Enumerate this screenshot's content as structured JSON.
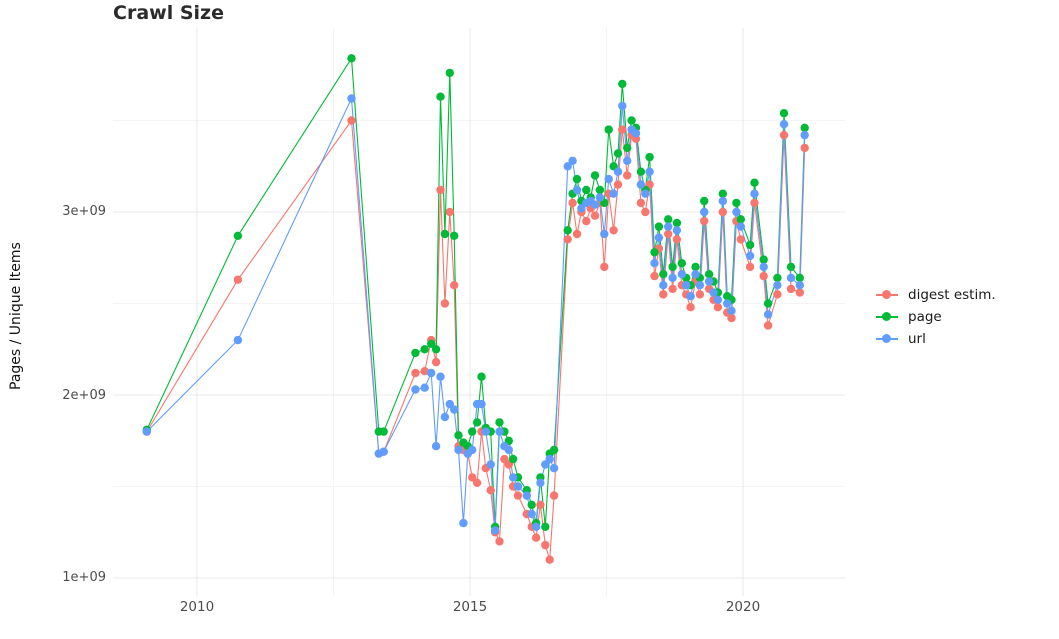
{
  "page": {
    "title": "Crawl Size"
  },
  "axes": {
    "y_label": "Pages / Unique Items",
    "y_ticks": [
      "1e+09",
      "2e+09",
      "3e+09"
    ],
    "x_ticks": [
      "2010",
      "2015",
      "2020"
    ]
  },
  "legend": {
    "items": [
      {
        "label": "digest estim.",
        "color": "#F8766D"
      },
      {
        "label": "page",
        "color": "#00BA38"
      },
      {
        "label": "url",
        "color": "#619CFF"
      }
    ]
  },
  "chart_data": {
    "type": "scatter",
    "title": "Crawl Size",
    "xlabel": "",
    "ylabel": "Pages / Unique Items",
    "y_unit": "billions of pages / unique items",
    "y_scale": 1000000000.0,
    "xlim": [
      2008.5,
      2021.9
    ],
    "ylim": [
      0.9,
      4.0
    ],
    "x_tick_values": [
      2010,
      2015,
      2020
    ],
    "y_tick_values": [
      1,
      2,
      3
    ],
    "y_tick_labels": [
      "1e+09",
      "2e+09",
      "3e+09"
    ],
    "grid": true,
    "legend_position": "right",
    "marker": "point-with-line",
    "x": [
      2009.08,
      2010.75,
      2012.83,
      2013.33,
      2013.42,
      2014.0,
      2014.17,
      2014.29,
      2014.38,
      2014.46,
      2014.54,
      2014.63,
      2014.71,
      2014.79,
      2014.88,
      2014.96,
      2015.04,
      2015.13,
      2015.21,
      2015.29,
      2015.38,
      2015.46,
      2015.54,
      2015.63,
      2015.71,
      2015.79,
      2015.88,
      2016.04,
      2016.13,
      2016.21,
      2016.29,
      2016.38,
      2016.46,
      2016.54,
      2016.79,
      2016.88,
      2016.96,
      2017.04,
      2017.13,
      2017.21,
      2017.29,
      2017.38,
      2017.46,
      2017.54,
      2017.63,
      2017.71,
      2017.79,
      2017.88,
      2017.96,
      2018.04,
      2018.13,
      2018.21,
      2018.29,
      2018.38,
      2018.46,
      2018.54,
      2018.63,
      2018.71,
      2018.79,
      2018.88,
      2018.96,
      2019.04,
      2019.13,
      2019.21,
      2019.29,
      2019.38,
      2019.46,
      2019.54,
      2019.63,
      2019.71,
      2019.79,
      2019.88,
      2019.96,
      2020.13,
      2020.21,
      2020.38,
      2020.46,
      2020.63,
      2020.75,
      2020.88,
      2021.04,
      2021.13
    ],
    "series": [
      {
        "name": "digest estim.",
        "color": "#F8766D",
        "values": [
          1.8,
          2.63,
          3.5,
          1.68,
          1.69,
          2.12,
          2.13,
          2.3,
          2.18,
          3.12,
          2.5,
          3.0,
          2.6,
          1.72,
          1.7,
          1.68,
          1.55,
          1.52,
          1.8,
          1.6,
          1.48,
          1.25,
          1.2,
          1.65,
          1.62,
          1.5,
          1.45,
          1.35,
          1.28,
          1.22,
          1.4,
          1.18,
          1.1,
          1.45,
          2.85,
          3.05,
          2.88,
          3.0,
          2.95,
          3.02,
          2.98,
          3.05,
          2.7,
          3.1,
          2.9,
          3.15,
          3.45,
          3.2,
          3.42,
          3.4,
          3.05,
          3.0,
          3.15,
          2.65,
          2.8,
          2.55,
          2.88,
          2.58,
          2.85,
          2.6,
          2.55,
          2.48,
          2.62,
          2.55,
          2.95,
          2.58,
          2.52,
          2.48,
          3.0,
          2.45,
          2.42,
          2.95,
          2.85,
          2.7,
          3.05,
          2.65,
          2.38,
          2.55,
          3.42,
          2.58,
          2.56,
          3.35
        ]
      },
      {
        "name": "page",
        "color": "#00BA38",
        "values": [
          1.81,
          2.87,
          3.84,
          1.8,
          1.8,
          2.23,
          2.25,
          2.28,
          2.25,
          3.63,
          2.88,
          3.76,
          2.87,
          1.78,
          1.74,
          1.72,
          1.8,
          1.85,
          2.1,
          1.82,
          1.8,
          1.28,
          1.85,
          1.8,
          1.75,
          1.65,
          1.55,
          1.48,
          1.4,
          1.3,
          1.55,
          1.28,
          1.68,
          1.7,
          2.9,
          3.1,
          3.18,
          3.06,
          3.12,
          3.08,
          3.2,
          3.12,
          3.05,
          3.45,
          3.25,
          3.32,
          3.7,
          3.35,
          3.5,
          3.46,
          3.22,
          3.12,
          3.3,
          2.78,
          2.92,
          2.66,
          2.96,
          2.7,
          2.94,
          2.72,
          2.64,
          2.6,
          2.7,
          2.64,
          3.06,
          2.66,
          2.62,
          2.56,
          3.1,
          2.54,
          2.52,
          3.05,
          2.96,
          2.82,
          3.16,
          2.74,
          2.5,
          2.64,
          3.54,
          2.7,
          2.64,
          3.46
        ]
      },
      {
        "name": "url",
        "color": "#619CFF",
        "values": [
          1.8,
          2.3,
          3.62,
          1.68,
          1.69,
          2.03,
          2.04,
          2.12,
          1.72,
          2.1,
          1.88,
          1.95,
          1.92,
          1.7,
          1.3,
          1.68,
          1.7,
          1.95,
          1.95,
          1.8,
          1.62,
          1.26,
          1.8,
          1.72,
          1.7,
          1.55,
          1.5,
          1.45,
          1.35,
          1.28,
          1.52,
          1.62,
          1.65,
          1.6,
          3.25,
          3.28,
          3.12,
          3.02,
          3.05,
          3.06,
          3.04,
          3.08,
          2.88,
          3.18,
          3.1,
          3.22,
          3.58,
          3.28,
          3.45,
          3.43,
          3.15,
          3.1,
          3.22,
          2.72,
          2.86,
          2.6,
          2.92,
          2.64,
          2.9,
          2.66,
          2.6,
          2.54,
          2.66,
          2.6,
          3.0,
          2.62,
          2.56,
          2.52,
          3.06,
          2.5,
          2.46,
          3.0,
          2.92,
          2.76,
          3.1,
          2.7,
          2.44,
          2.6,
          3.48,
          2.64,
          2.6,
          3.42
        ]
      }
    ]
  }
}
